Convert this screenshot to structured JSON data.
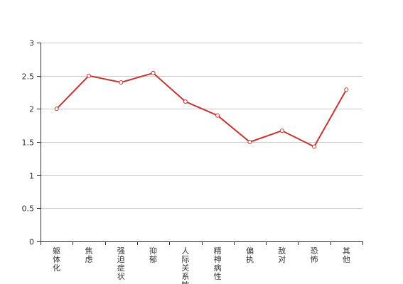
{
  "chart_data": {
    "type": "line",
    "categories": [
      "躯体化",
      "焦虑",
      "强迫症状",
      "抑郁",
      "人际关系敏感",
      "精神病性",
      "偏执",
      "敌对",
      "恐怖",
      "其他"
    ],
    "values": [
      2.0,
      2.5,
      2.4,
      2.54,
      2.11,
      1.9,
      1.5,
      1.67,
      1.43,
      2.29
    ],
    "ylim": [
      0,
      3
    ],
    "yticks": [
      "0",
      "0.5",
      "1",
      "1.5",
      "2",
      "2.5",
      "3"
    ],
    "grid": true,
    "line_color": "#c23531"
  }
}
